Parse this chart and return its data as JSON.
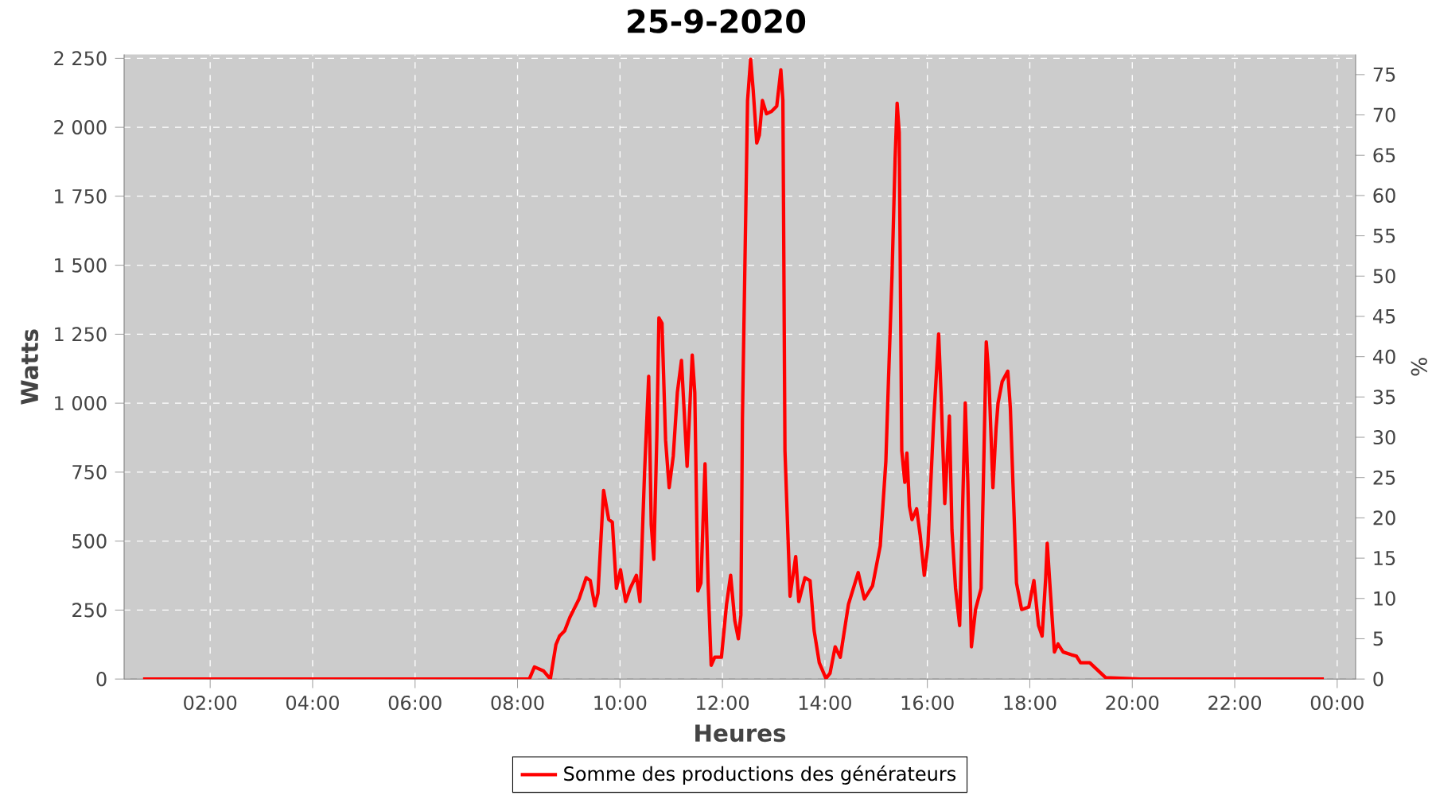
{
  "chart_data": {
    "type": "line",
    "title": "25-9-2020",
    "xlabel": "Heures",
    "ylabel": "Watts",
    "y2label": "%",
    "xlim": [
      0.32,
      24.36
    ],
    "ylim": [
      0,
      2264
    ],
    "y2lim": [
      0,
      77.5
    ],
    "xticks": [
      {
        "value": 2,
        "label": "02:00"
      },
      {
        "value": 4,
        "label": "04:00"
      },
      {
        "value": 6,
        "label": "06:00"
      },
      {
        "value": 8,
        "label": "08:00"
      },
      {
        "value": 10,
        "label": "10:00"
      },
      {
        "value": 12,
        "label": "12:00"
      },
      {
        "value": 14,
        "label": "14:00"
      },
      {
        "value": 16,
        "label": "16:00"
      },
      {
        "value": 18,
        "label": "18:00"
      },
      {
        "value": 20,
        "label": "20:00"
      },
      {
        "value": 22,
        "label": "22:00"
      },
      {
        "value": 24,
        "label": "00:00"
      }
    ],
    "yticks": [
      0,
      250,
      500,
      750,
      {
        "value": 1000,
        "label": "1 000"
      },
      {
        "value": 1250,
        "label": "1 250"
      },
      {
        "value": 1500,
        "label": "1 500"
      },
      {
        "value": 1750,
        "label": "1 750"
      },
      {
        "value": 2000,
        "label": "2 000"
      },
      {
        "value": 2250,
        "label": "2 250"
      }
    ],
    "y2ticks": [
      0,
      5,
      10,
      15,
      20,
      25,
      30,
      35,
      40,
      45,
      50,
      55,
      60,
      65,
      70,
      75
    ],
    "grid": true,
    "legend": "bottom",
    "marker": "none",
    "line_style": "solid",
    "x": [
      0.69,
      8.15,
      8.23,
      8.33,
      8.51,
      8.64,
      8.75,
      8.82,
      8.92,
      9.02,
      9.2,
      9.34,
      9.42,
      9.51,
      9.57,
      9.68,
      9.78,
      9.85,
      9.93,
      10.01,
      10.11,
      10.2,
      10.32,
      10.39,
      10.48,
      10.56,
      10.61,
      10.66,
      10.72,
      10.76,
      10.82,
      10.89,
      10.96,
      11.04,
      11.12,
      11.2,
      11.31,
      11.41,
      11.46,
      11.52,
      11.58,
      11.66,
      11.72,
      11.78,
      11.85,
      11.98,
      12.08,
      12.16,
      12.24,
      12.31,
      12.36,
      12.39,
      12.49,
      12.55,
      12.6,
      12.67,
      12.72,
      12.78,
      12.86,
      12.96,
      13.06,
      13.14,
      13.18,
      13.22,
      13.32,
      13.43,
      13.49,
      13.61,
      13.71,
      13.79,
      13.89,
      14.02,
      14.1,
      14.2,
      14.3,
      14.46,
      14.65,
      14.77,
      14.93,
      15.08,
      15.19,
      15.24,
      15.31,
      15.37,
      15.41,
      15.45,
      15.5,
      15.56,
      15.6,
      15.65,
      15.7,
      15.79,
      15.86,
      15.94,
      16.01,
      16.12,
      16.22,
      16.27,
      16.34,
      16.43,
      16.48,
      16.55,
      16.63,
      16.69,
      16.74,
      16.79,
      16.86,
      16.94,
      17.05,
      17.15,
      17.2,
      17.28,
      17.34,
      17.38,
      17.46,
      17.57,
      17.62,
      17.67,
      17.74,
      17.84,
      17.98,
      18.08,
      18.17,
      18.24,
      18.31,
      18.34,
      18.39,
      18.48,
      18.55,
      18.65,
      18.81,
      18.91,
      18.99,
      19.17,
      19.48,
      20.16,
      23.74
    ],
    "series": [
      {
        "name": "Somme des productions des  générateurs",
        "color": "#ff0000",
        "values": [
          0,
          0,
          0,
          44,
          29,
          0,
          125,
          156,
          175,
          223,
          290,
          367,
          357,
          265,
          310,
          684,
          578,
          569,
          329,
          396,
          281,
          329,
          376,
          281,
          751,
          1097,
          559,
          434,
          886,
          1309,
          1290,
          866,
          694,
          809,
          1039,
          1155,
          771,
          1174,
          1039,
          319,
          348,
          780,
          348,
          50,
          79,
          79,
          271,
          376,
          213,
          146,
          232,
          944,
          2097,
          2247,
          2135,
          1943,
          1972,
          2097,
          2049,
          2058,
          2077,
          2208,
          2097,
          828,
          300,
          444,
          281,
          367,
          357,
          175,
          59,
          2,
          21,
          117,
          79,
          271,
          386,
          290,
          338,
          483,
          790,
          1078,
          1463,
          1885,
          2087,
          1981,
          828,
          713,
          819,
          627,
          578,
          617,
          521,
          376,
          483,
          924,
          1251,
          1020,
          636,
          953,
          540,
          329,
          194,
          636,
          1001,
          713,
          117,
          252,
          329,
          1222,
          1097,
          694,
          905,
          1001,
          1078,
          1116,
          982,
          713,
          348,
          252,
          261,
          357,
          194,
          156,
          367,
          492,
          348,
          98,
          127,
          98,
          88,
          83,
          59,
          59,
          5,
          0,
          0
        ]
      }
    ]
  }
}
